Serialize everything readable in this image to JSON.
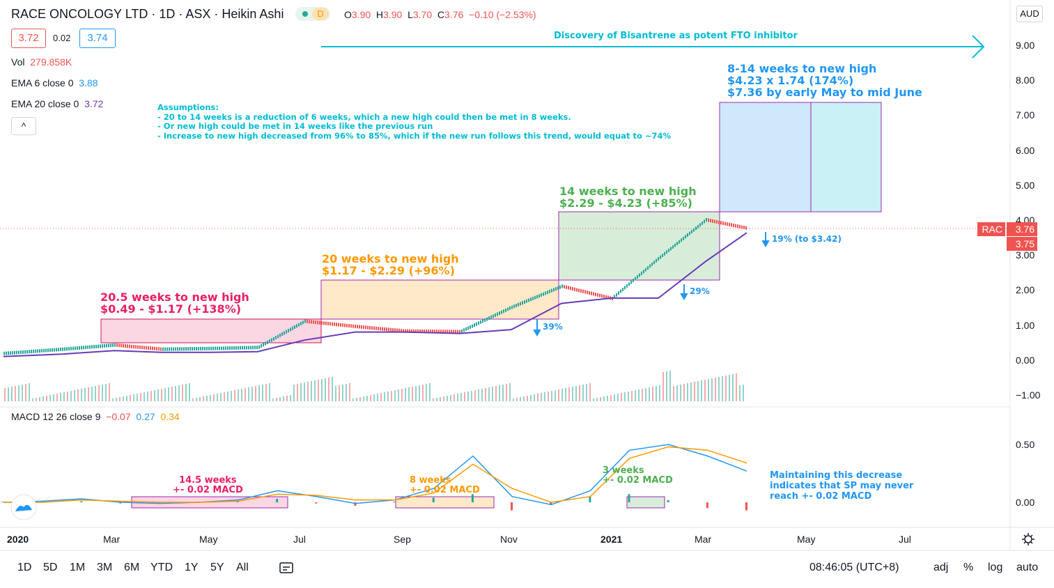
{
  "header": {
    "title": "RACE ONCOLOGY LTD · 1D · ASX · Heikin Ashi",
    "badge_d": "D",
    "ohlc": {
      "o_label": "O",
      "o": "3.90",
      "h_label": "H",
      "h": "3.90",
      "l_label": "L",
      "l": "3.70",
      "c_label": "C",
      "c": "3.76",
      "chg": "−0.10 (−2.53%)"
    },
    "bid": "3.72",
    "spread": "0.02",
    "ask": "3.74",
    "vol_label": "Vol",
    "vol_value": "279.858K",
    "ema6_label": "EMA 6 close 0",
    "ema6_value": "3.88",
    "ema20_label": "EMA 20 close 0",
    "ema20_value": "3.72",
    "collapse_icon": "^",
    "currency": "AUD"
  },
  "price_axis": [
    "9.00",
    "8.00",
    "7.00",
    "6.00",
    "5.00",
    "4.00",
    "3.00",
    "2.00",
    "1.00",
    "0.00",
    "−1.00"
  ],
  "macd_axis": [
    "0.50",
    "0.00"
  ],
  "time_axis": [
    "2020",
    "Mar",
    "May",
    "Jul",
    "Sep",
    "Nov",
    "2021",
    "Mar",
    "May",
    "Jul"
  ],
  "current_price": {
    "symbol": "RAC",
    "price": "3.76",
    "secondary": "3.75"
  },
  "macd_legend": {
    "label": "MACD 12 26 close 9",
    "hist": "−0.07",
    "macd": "0.27",
    "signal": "0.34"
  },
  "annotations": {
    "discovery": "Discovery of Bisantrene as potent FTO inhibitor",
    "assumptions": [
      "Assumptions:",
      "- 20 to 14 weeks is a reduction of 6 weeks, which a new high could then be met in 8 weeks.",
      "- Or new high could be met in 14 weeks like the previous run",
      "- Increase to new high decreased from 96% to 85%, which if the new run follows this trend, would equat to ~74%"
    ],
    "run1": [
      "20.5 weeks to new high",
      "$0.49 - $1.17 (+138%)"
    ],
    "run2": [
      "20 weeks to new high",
      "$1.17 - $2.29 (+96%)"
    ],
    "run3": [
      "14 weeks to new high",
      "$2.29 - $4.23 (+85%)"
    ],
    "run4": [
      "8-14 weeks to new high",
      "$4.23 x 1.74 (174%)",
      "$7.36 by early May to mid June"
    ],
    "drop1": "39%",
    "drop2": "29%",
    "drop3": "19% (to $3.42)",
    "macd1": [
      "14.5 weeks",
      "+- 0.02 MACD"
    ],
    "macd2": [
      "8 weeks",
      "+- 0.02 MACD"
    ],
    "macd3": [
      "3 weeks",
      "+- 0.02 MACD"
    ],
    "macd_note": [
      "Maintaining this decrease",
      "indicates that SP may never",
      "reach +- 0.02 MACD"
    ]
  },
  "timeframes": [
    "1D",
    "5D",
    "1M",
    "3M",
    "6M",
    "YTD",
    "1Y",
    "5Y",
    "All"
  ],
  "bottom_right": {
    "time": "08:46:05 (UTC+8)",
    "adj": "adj",
    "pct": "%",
    "log": "log",
    "auto": "auto"
  },
  "colors": {
    "up": "#26a69a",
    "down": "#ef5350",
    "ema6": "#2196f3",
    "ema20": "#673ab7",
    "macd": "#2196f3",
    "signal": "#ff9800",
    "annotation_blue": "#00bcd4"
  },
  "chart_data": {
    "type": "line",
    "title": "RACE ONCOLOGY LTD · 1D · ASX · Heikin Ashi",
    "y_range": [
      -1.0,
      9.5
    ],
    "series": [
      {
        "name": "EMA 20 close 0",
        "x": [
          "2020-01",
          "2020-02",
          "2020-03",
          "2020-04",
          "2020-05",
          "2020-06",
          "2020-07",
          "2020-08",
          "2020-09",
          "2020-10",
          "2020-11",
          "2020-12",
          "2021-01",
          "2021-02",
          "2021-03",
          "2021-03-20"
        ],
        "values": [
          0.18,
          0.25,
          0.35,
          0.3,
          0.3,
          0.32,
          0.65,
          0.88,
          0.88,
          0.84,
          0.95,
          1.7,
          1.85,
          1.85,
          2.9,
          3.72
        ]
      }
    ],
    "price_points": [
      {
        "x": "2020-01",
        "y": 0.18
      },
      {
        "x": "2020-02",
        "y": 0.3
      },
      {
        "x": "2020-03",
        "y": 0.42
      },
      {
        "x": "2020-04",
        "y": 0.3
      },
      {
        "x": "2020-05",
        "y": 0.32
      },
      {
        "x": "2020-06",
        "y": 0.35
      },
      {
        "x": "2020-07",
        "y": 1.1
      },
      {
        "x": "2020-08",
        "y": 0.95
      },
      {
        "x": "2020-09",
        "y": 0.82
      },
      {
        "x": "2020-10",
        "y": 0.8
      },
      {
        "x": "2020-11",
        "y": 1.5
      },
      {
        "x": "2020-12",
        "y": 2.1
      },
      {
        "x": "2021-01",
        "y": 1.75
      },
      {
        "x": "2021-02",
        "y": 2.9
      },
      {
        "x": "2021-03",
        "y": 4.0
      },
      {
        "x": "2021-03-20",
        "y": 3.76
      }
    ],
    "macd_series": {
      "macd": [
        0.0,
        0.01,
        0.03,
        0.0,
        -0.01,
        0.0,
        0.02,
        0.1,
        0.05,
        -0.01,
        0.02,
        0.12,
        0.4,
        0.05,
        -0.02,
        0.1,
        0.45,
        0.5,
        0.4,
        0.27
      ],
      "signal": [
        0.0,
        0.0,
        0.02,
        0.01,
        0.0,
        0.0,
        0.01,
        0.07,
        0.06,
        0.02,
        0.02,
        0.08,
        0.33,
        0.12,
        0.0,
        0.05,
        0.38,
        0.48,
        0.45,
        0.34
      ]
    },
    "boxes": [
      {
        "label": "run1",
        "x0": "2020-02-20",
        "x1": "2020-07-08",
        "y0": 0.49,
        "y1": 1.17
      },
      {
        "label": "run2",
        "x0": "2020-07-08",
        "x1": "2020-11-25",
        "y0": 1.17,
        "y1": 2.29
      },
      {
        "label": "run3",
        "x0": "2020-11-25",
        "x1": "2021-03-05",
        "y0": 2.29,
        "y1": 4.23
      },
      {
        "label": "run4",
        "x0": "2021-03-05",
        "x1": "2021-06-15",
        "y0": 4.23,
        "y1": 7.36
      }
    ]
  }
}
